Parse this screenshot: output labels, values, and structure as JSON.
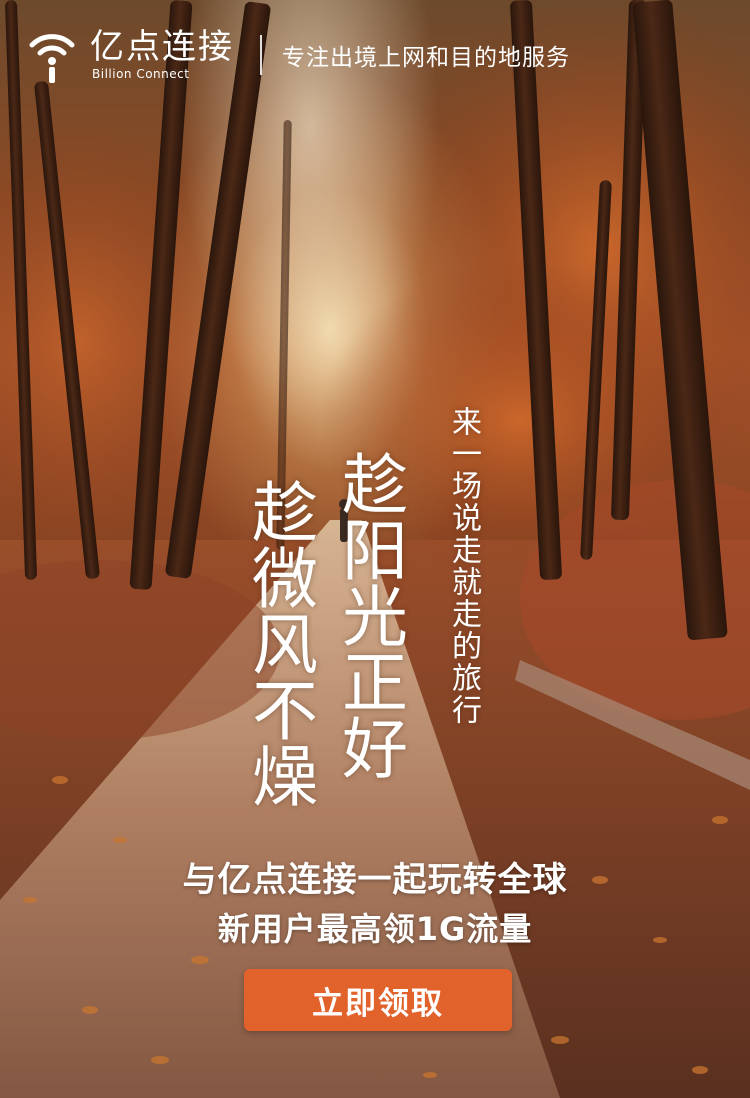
{
  "header": {
    "brand_cn": "亿点连接",
    "brand_en": "Billion Connect",
    "slogan": "专注出境上网和目的地服务",
    "logo_icon": "wifi-person-icon"
  },
  "poem": {
    "line_1": "趁阳光正好",
    "line_2": "趁微风不燥",
    "small_line": "来一场说走就走的旅行"
  },
  "promo": {
    "headline": "与亿点连接一起玩转全球",
    "subline": "新用户最高领1G流量"
  },
  "cta": {
    "label": "立即领取",
    "color": "#e2622c"
  },
  "colors": {
    "text": "#ffffff",
    "background_tone": "#8b4a25"
  }
}
